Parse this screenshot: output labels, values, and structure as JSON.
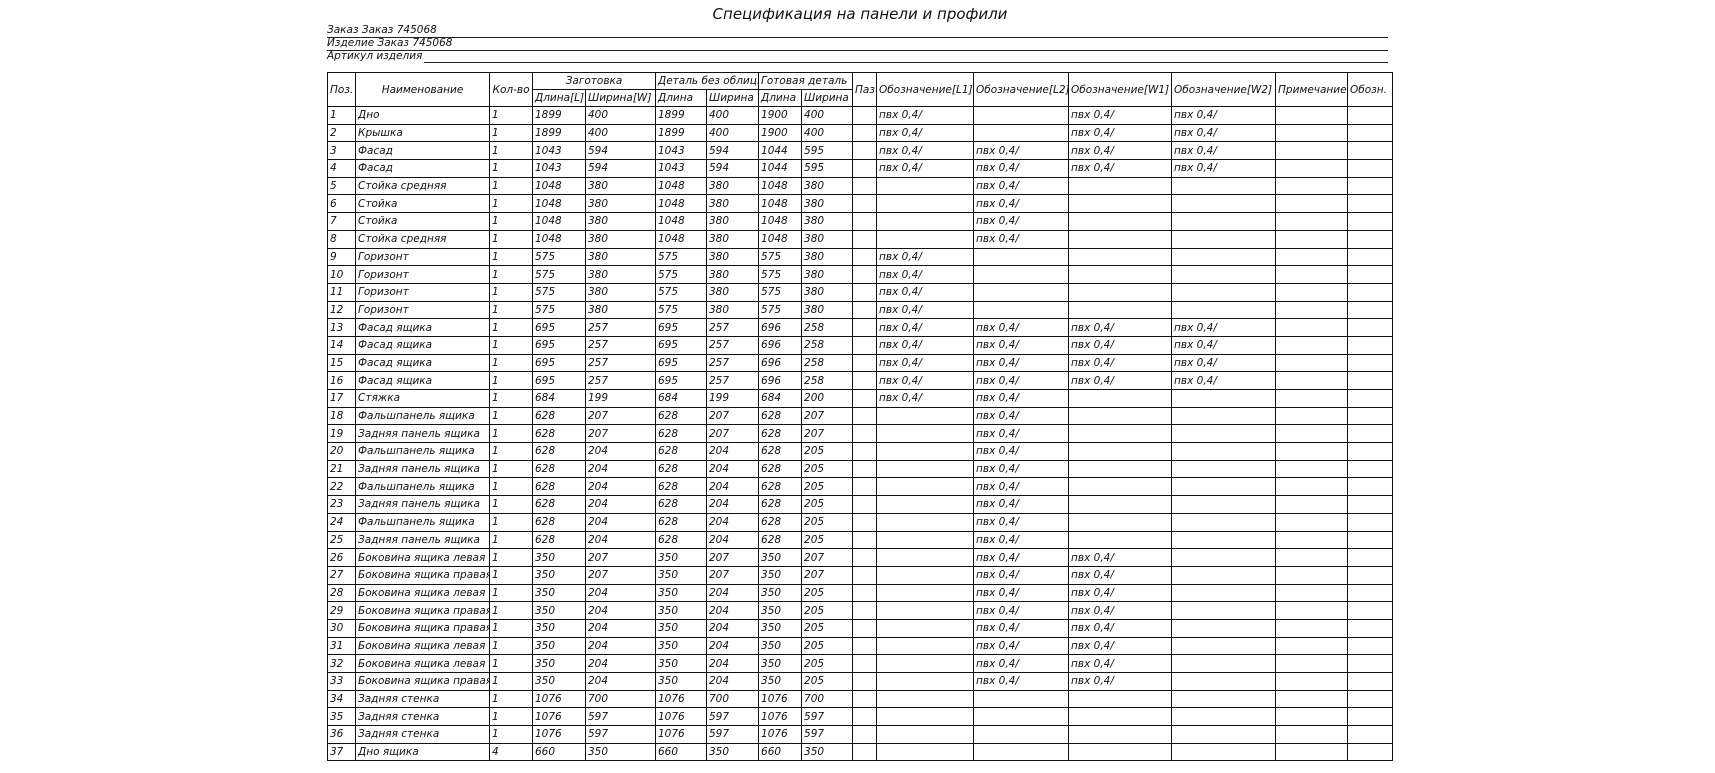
{
  "title": "Спецификация на панели и профили",
  "info": {
    "order": "Заказ Заказ 745068",
    "product": "Изделие Заказ 745068",
    "article_label": "Артикул изделия"
  },
  "table": {
    "headers": {
      "pos": "Поз.",
      "name": "Наименование",
      "qty": "Кол-во",
      "blank_group": "Заготовка",
      "blank_length": "Длина[L]",
      "blank_width": "Ширина[W]",
      "raw_group": "Деталь без облиц.",
      "raw_length": "Длина",
      "raw_width": "Ширина",
      "final_group": "Готовая деталь",
      "final_length": "Длина",
      "final_width": "Ширина",
      "groove": "Паз",
      "l1": "Обозначение[L1]",
      "l2": "Обозначение[L2]",
      "w1": "Обозначение[W1]",
      "w2": "Обозначение[W2]",
      "note": "Примечание",
      "code": "Обозн."
    },
    "columns": [
      "pos",
      "name",
      "qty",
      "blank_length",
      "blank_width",
      "raw_length",
      "raw_width",
      "final_length",
      "final_width",
      "groove",
      "l1",
      "l2",
      "w1",
      "w2",
      "note",
      "code"
    ],
    "rows": [
      [
        "1",
        "Дно",
        "1",
        "1899",
        "400",
        "1899",
        "400",
        "1900",
        "400",
        "",
        "пвх 0,4/",
        "",
        "пвх 0,4/",
        "пвх 0,4/",
        "",
        ""
      ],
      [
        "2",
        "Крышка",
        "1",
        "1899",
        "400",
        "1899",
        "400",
        "1900",
        "400",
        "",
        "пвх 0,4/",
        "",
        "пвх 0,4/",
        "пвх 0,4/",
        "",
        ""
      ],
      [
        "3",
        "Фасад",
        "1",
        "1043",
        "594",
        "1043",
        "594",
        "1044",
        "595",
        "",
        "пвх 0,4/",
        "пвх 0,4/",
        "пвх 0,4/",
        "пвх 0,4/",
        "",
        ""
      ],
      [
        "4",
        "Фасад",
        "1",
        "1043",
        "594",
        "1043",
        "594",
        "1044",
        "595",
        "",
        "пвх 0,4/",
        "пвх 0,4/",
        "пвх 0,4/",
        "пвх 0,4/",
        "",
        ""
      ],
      [
        "5",
        "Стойка средняя",
        "1",
        "1048",
        "380",
        "1048",
        "380",
        "1048",
        "380",
        "",
        "",
        "пвх 0,4/",
        "",
        "",
        "",
        ""
      ],
      [
        "6",
        "Стойка",
        "1",
        "1048",
        "380",
        "1048",
        "380",
        "1048",
        "380",
        "",
        "",
        "пвх 0,4/",
        "",
        "",
        "",
        ""
      ],
      [
        "7",
        "Стойка",
        "1",
        "1048",
        "380",
        "1048",
        "380",
        "1048",
        "380",
        "",
        "",
        "пвх 0,4/",
        "",
        "",
        "",
        ""
      ],
      [
        "8",
        "Стойка средняя",
        "1",
        "1048",
        "380",
        "1048",
        "380",
        "1048",
        "380",
        "",
        "",
        "пвх 0,4/",
        "",
        "",
        "",
        ""
      ],
      [
        "9",
        "Горизонт",
        "1",
        "575",
        "380",
        "575",
        "380",
        "575",
        "380",
        "",
        "пвх 0,4/",
        "",
        "",
        "",
        "",
        ""
      ],
      [
        "10",
        "Горизонт",
        "1",
        "575",
        "380",
        "575",
        "380",
        "575",
        "380",
        "",
        "пвх 0,4/",
        "",
        "",
        "",
        "",
        ""
      ],
      [
        "11",
        "Горизонт",
        "1",
        "575",
        "380",
        "575",
        "380",
        "575",
        "380",
        "",
        "пвх 0,4/",
        "",
        "",
        "",
        "",
        ""
      ],
      [
        "12",
        "Горизонт",
        "1",
        "575",
        "380",
        "575",
        "380",
        "575",
        "380",
        "",
        "пвх 0,4/",
        "",
        "",
        "",
        "",
        ""
      ],
      [
        "13",
        "Фасад ящика",
        "1",
        "695",
        "257",
        "695",
        "257",
        "696",
        "258",
        "",
        "пвх 0,4/",
        "пвх 0,4/",
        "пвх 0,4/",
        "пвх 0,4/",
        "",
        ""
      ],
      [
        "14",
        "Фасад ящика",
        "1",
        "695",
        "257",
        "695",
        "257",
        "696",
        "258",
        "",
        "пвх 0,4/",
        "пвх 0,4/",
        "пвх 0,4/",
        "пвх 0,4/",
        "",
        ""
      ],
      [
        "15",
        "Фасад ящика",
        "1",
        "695",
        "257",
        "695",
        "257",
        "696",
        "258",
        "",
        "пвх 0,4/",
        "пвх 0,4/",
        "пвх 0,4/",
        "пвх 0,4/",
        "",
        ""
      ],
      [
        "16",
        "Фасад ящика",
        "1",
        "695",
        "257",
        "695",
        "257",
        "696",
        "258",
        "",
        "пвх 0,4/",
        "пвх 0,4/",
        "пвх 0,4/",
        "пвх 0,4/",
        "",
        ""
      ],
      [
        "17",
        "Стяжка",
        "1",
        "684",
        "199",
        "684",
        "199",
        "684",
        "200",
        "",
        "пвх 0,4/",
        "пвх 0,4/",
        "",
        "",
        "",
        ""
      ],
      [
        "18",
        "Фальшпанель ящика",
        "1",
        "628",
        "207",
        "628",
        "207",
        "628",
        "207",
        "",
        "",
        "пвх 0,4/",
        "",
        "",
        "",
        ""
      ],
      [
        "19",
        "Задняя панель ящика",
        "1",
        "628",
        "207",
        "628",
        "207",
        "628",
        "207",
        "",
        "",
        "пвх 0,4/",
        "",
        "",
        "",
        ""
      ],
      [
        "20",
        "Фальшпанель ящика",
        "1",
        "628",
        "204",
        "628",
        "204",
        "628",
        "205",
        "",
        "",
        "пвх 0,4/",
        "",
        "",
        "",
        ""
      ],
      [
        "21",
        "Задняя панель ящика",
        "1",
        "628",
        "204",
        "628",
        "204",
        "628",
        "205",
        "",
        "",
        "пвх 0,4/",
        "",
        "",
        "",
        ""
      ],
      [
        "22",
        "Фальшпанель ящика",
        "1",
        "628",
        "204",
        "628",
        "204",
        "628",
        "205",
        "",
        "",
        "пвх 0,4/",
        "",
        "",
        "",
        ""
      ],
      [
        "23",
        "Задняя панель ящика",
        "1",
        "628",
        "204",
        "628",
        "204",
        "628",
        "205",
        "",
        "",
        "пвх 0,4/",
        "",
        "",
        "",
        ""
      ],
      [
        "24",
        "Фальшпанель ящика",
        "1",
        "628",
        "204",
        "628",
        "204",
        "628",
        "205",
        "",
        "",
        "пвх 0,4/",
        "",
        "",
        "",
        ""
      ],
      [
        "25",
        "Задняя панель ящика",
        "1",
        "628",
        "204",
        "628",
        "204",
        "628",
        "205",
        "",
        "",
        "пвх 0,4/",
        "",
        "",
        "",
        ""
      ],
      [
        "26",
        "Боковина ящика левая",
        "1",
        "350",
        "207",
        "350",
        "207",
        "350",
        "207",
        "",
        "",
        "пвх 0,4/",
        "пвх 0,4/",
        "",
        "",
        ""
      ],
      [
        "27",
        "Боковина ящика правая",
        "1",
        "350",
        "207",
        "350",
        "207",
        "350",
        "207",
        "",
        "",
        "пвх 0,4/",
        "пвх 0,4/",
        "",
        "",
        ""
      ],
      [
        "28",
        "Боковина ящика левая",
        "1",
        "350",
        "204",
        "350",
        "204",
        "350",
        "205",
        "",
        "",
        "пвх 0,4/",
        "пвх 0,4/",
        "",
        "",
        ""
      ],
      [
        "29",
        "Боковина ящика правая",
        "1",
        "350",
        "204",
        "350",
        "204",
        "350",
        "205",
        "",
        "",
        "пвх 0,4/",
        "пвх 0,4/",
        "",
        "",
        ""
      ],
      [
        "30",
        "Боковина ящика правая",
        "1",
        "350",
        "204",
        "350",
        "204",
        "350",
        "205",
        "",
        "",
        "пвх 0,4/",
        "пвх 0,4/",
        "",
        "",
        ""
      ],
      [
        "31",
        "Боковина ящика левая",
        "1",
        "350",
        "204",
        "350",
        "204",
        "350",
        "205",
        "",
        "",
        "пвх 0,4/",
        "пвх 0,4/",
        "",
        "",
        ""
      ],
      [
        "32",
        "Боковина ящика левая",
        "1",
        "350",
        "204",
        "350",
        "204",
        "350",
        "205",
        "",
        "",
        "пвх 0,4/",
        "пвх 0,4/",
        "",
        "",
        ""
      ],
      [
        "33",
        "Боковина ящика правая",
        "1",
        "350",
        "204",
        "350",
        "204",
        "350",
        "205",
        "",
        "",
        "пвх 0,4/",
        "пвх 0,4/",
        "",
        "",
        ""
      ],
      [
        "34",
        "Задняя стенка",
        "1",
        "1076",
        "700",
        "1076",
        "700",
        "1076",
        "700",
        "",
        "",
        "",
        "",
        "",
        "",
        ""
      ],
      [
        "35",
        "Задняя стенка",
        "1",
        "1076",
        "597",
        "1076",
        "597",
        "1076",
        "597",
        "",
        "",
        "",
        "",
        "",
        "",
        ""
      ],
      [
        "36",
        "Задняя стенка",
        "1",
        "1076",
        "597",
        "1076",
        "597",
        "1076",
        "597",
        "",
        "",
        "",
        "",
        "",
        "",
        ""
      ],
      [
        "37",
        "Дно ящика",
        "4",
        "660",
        "350",
        "660",
        "350",
        "660",
        "350",
        "",
        "",
        "",
        "",
        "",
        "",
        ""
      ]
    ]
  }
}
